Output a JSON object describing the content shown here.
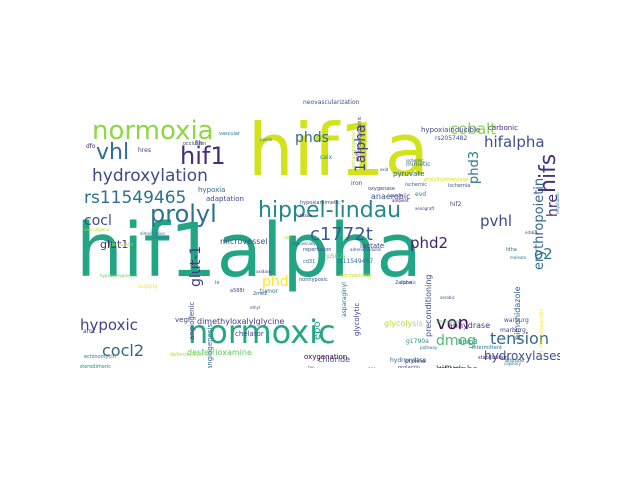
{
  "word_cloud": {
    "words": [
      {
        "text": "hif1alpha",
        "color": "#21a585"
      },
      {
        "text": "hif1a",
        "color": "#d2e21b"
      },
      {
        "text": "normoxic",
        "color": "#26a784"
      },
      {
        "text": "hippel-lindau",
        "color": "#22888e"
      },
      {
        "text": "prolyl",
        "color": "#2c728e"
      },
      {
        "text": "normoxia",
        "color": "#8fd744"
      },
      {
        "text": "hydroxylation",
        "color": "#3e4a89"
      },
      {
        "text": "hif1",
        "color": "#472d7b"
      },
      {
        "text": "vhl",
        "color": "#2d708e"
      },
      {
        "text": "hifs",
        "color": "#46337e"
      },
      {
        "text": "c1772t",
        "color": "#365c8d"
      },
      {
        "text": "rs11549465",
        "color": "#2c728e"
      },
      {
        "text": "tension",
        "color": "#31688e"
      },
      {
        "text": "von",
        "color": "#46085c"
      },
      {
        "text": "cocl2",
        "color": "#30697e"
      },
      {
        "text": "hypoxic",
        "color": "#414487"
      },
      {
        "text": "dmog",
        "color": "#4fba6e"
      },
      {
        "text": "hifalpha",
        "color": "#3b528b"
      },
      {
        "text": "cobalt",
        "color": "#84d44b"
      },
      {
        "text": "phd2",
        "color": "#482173"
      },
      {
        "text": "1alpha",
        "color": "#433e85"
      },
      {
        "text": "phds",
        "color": "#31688e"
      },
      {
        "text": "pvhl",
        "color": "#3e4989"
      },
      {
        "text": "phd3",
        "color": "#2a788e"
      },
      {
        "text": "o2",
        "color": "#2a768e"
      },
      {
        "text": "hre",
        "color": "#482878"
      },
      {
        "text": "glut-1",
        "color": "#443983"
      },
      {
        "text": "phd",
        "color": "#fde725"
      },
      {
        "text": "erythropoietin",
        "color": "#31688e"
      },
      {
        "text": "hydroxylases",
        "color": "#3b528b"
      },
      {
        "text": "cocl",
        "color": "#3e4c8a"
      },
      {
        "text": "glut1",
        "color": "#472c7a"
      },
      {
        "text": "epo",
        "color": "#1f9a8a"
      },
      {
        "text": "hif1alpha",
        "color": "#2d718e"
      },
      {
        "text": "anhydrase",
        "color": "#453882"
      },
      {
        "text": "chloride",
        "color": "#355f8d"
      },
      {
        "text": "desferrioxamine",
        "color": "#5ec962"
      },
      {
        "text": "vegf",
        "color": "#3f4788"
      },
      {
        "text": "dimethyloxalylglycine",
        "color": "#443a83"
      },
      {
        "text": "microvessel",
        "color": "#3b528b"
      },
      {
        "text": "anaerobic",
        "color": "#39558c"
      },
      {
        "text": "hypoxia",
        "color": "#2f6c8e"
      },
      {
        "text": "adaptation",
        "color": "#3f4889"
      },
      {
        "text": "hypoxiainducible",
        "color": "#3e4989"
      },
      {
        "text": "carbonic",
        "color": "#472f7d"
      },
      {
        "text": "pyruvate",
        "color": "#33638d"
      },
      {
        "text": "pimonidazole",
        "color": "#365d8d"
      },
      {
        "text": "preconditioning",
        "color": "#3b518b"
      },
      {
        "text": "glycolysis",
        "color": "#b5de2b"
      },
      {
        "text": "glycolytic",
        "color": "#424086"
      },
      {
        "text": "bnip3",
        "color": "#26818e"
      },
      {
        "text": "angiogenic",
        "color": "#3c4f8a"
      },
      {
        "text": "angiogenesis",
        "color": "#2e6e8e"
      },
      {
        "text": "oxygenation",
        "color": "#440154"
      },
      {
        "text": "lactate",
        "color": "#414487"
      },
      {
        "text": "chelator",
        "color": "#3f4788"
      },
      {
        "text": "hres",
        "color": "#453781"
      },
      {
        "text": "fih",
        "color": "#472a7a"
      },
      {
        "text": "caix",
        "color": "#23898e"
      },
      {
        "text": "mimetic",
        "color": "#2e6f8e"
      },
      {
        "text": "hif2",
        "color": "#414287"
      },
      {
        "text": "evd",
        "color": "#277f8e"
      },
      {
        "text": "iron",
        "color": "#3d4e8a"
      },
      {
        "text": "dfo",
        "color": "#482979"
      },
      {
        "text": "p582s",
        "color": "#6ccd5a"
      },
      {
        "text": "rs11549467",
        "color": "#2d708e"
      },
      {
        "text": "rs2057482",
        "color": "#3b528b"
      },
      {
        "text": "g1790a",
        "color": "#21918c"
      },
      {
        "text": "proline",
        "color": "#482374"
      },
      {
        "text": "hydroxylase",
        "color": "#2f6b8e"
      },
      {
        "text": "neovascularization",
        "color": "#3b528b"
      },
      {
        "text": "vascular",
        "color": "#2a778e"
      },
      {
        "text": "ischemic",
        "color": "#2e6f8e"
      },
      {
        "text": "ischemia",
        "color": "#38588c"
      },
      {
        "text": "prolylhydroxylase",
        "color": "#d8e219"
      },
      {
        "text": "marburg",
        "color": "#424086"
      },
      {
        "text": "warburg",
        "color": "#3a538b"
      },
      {
        "text": "altitude",
        "color": "#2c738e"
      },
      {
        "text": "intermittent",
        "color": "#2c728e"
      },
      {
        "text": "stabilization",
        "color": "#482677"
      },
      {
        "text": "prolactin",
        "color": "#3e4989"
      },
      {
        "text": "pvhl",
        "color": "#481f70"
      },
      {
        "text": "nonhypoxic",
        "color": "#3b528b"
      },
      {
        "text": "asparaginyl",
        "color": "#2c728e"
      },
      {
        "text": "oxygenase",
        "color": "#404588"
      },
      {
        "text": "arnt",
        "color": "#414287"
      },
      {
        "text": "hif2alpha",
        "color": "#440154"
      },
      {
        "text": "2alpha",
        "color": "#3f4788"
      },
      {
        "text": "supply",
        "color": "#fde725"
      },
      {
        "text": "tumor",
        "color": "#2a788e"
      },
      {
        "text": "perfusion",
        "color": "#b5de2b"
      },
      {
        "text": "reperfusion",
        "color": "#3b528b"
      },
      {
        "text": "hypoxiamimetic",
        "color": "#3d4d8a"
      },
      {
        "text": "normoxically",
        "color": "#bddf26"
      },
      {
        "text": "echinomycin",
        "color": "#2a768e"
      },
      {
        "text": "deferoxamine",
        "color": "#b5de2b"
      },
      {
        "text": "adrenomedullin",
        "color": "#3b528b"
      },
      {
        "text": "occlusion",
        "color": "#3f4788"
      },
      {
        "text": "respiration",
        "color": "#25848e"
      },
      {
        "text": "proangiogenic",
        "color": "#3f4788"
      },
      {
        "text": "antiangiogenic",
        "color": "#bddf26"
      },
      {
        "text": "capillary",
        "color": "#2a768e"
      },
      {
        "text": "oxidase",
        "color": "#443a83"
      },
      {
        "text": "2me2",
        "color": "#3b518b"
      },
      {
        "text": "a588t",
        "color": "#3c4f8a"
      },
      {
        "text": "ethyl",
        "color": "#365d8d"
      },
      {
        "text": "cd31",
        "color": "#2f6b8e"
      },
      {
        "text": "hypoxically",
        "color": "#38588c"
      },
      {
        "text": "nbs",
        "color": "#9bd93c"
      },
      {
        "text": "ldha",
        "color": "#2e6f8e"
      },
      {
        "text": "heterodimeric",
        "color": "#238a8d"
      },
      {
        "text": "dimerization",
        "color": "#2c728e"
      },
      {
        "text": "1-methylpiperidin",
        "color": "#fde725"
      },
      {
        "text": "vasculogenic",
        "color": "#b5de2b"
      },
      {
        "text": "erbb2",
        "color": "#414487"
      },
      {
        "text": "maleate",
        "color": "#2a788e"
      },
      {
        "text": "diabetic",
        "color": "#355f8d"
      },
      {
        "text": "ix",
        "color": "#3f4788"
      },
      {
        "text": "cancer",
        "color": "#482677"
      },
      {
        "text": "ambient",
        "color": "#440154"
      },
      {
        "text": "xenograft",
        "color": "#3e4989"
      },
      {
        "text": "tissue",
        "color": "#440154"
      },
      {
        "text": "pathway",
        "color": "#2c728e"
      },
      {
        "text": "crosstalk",
        "color": "#2a788e"
      },
      {
        "text": "hypoxiaresponsive",
        "color": "#5ec962"
      },
      {
        "text": "ischemic",
        "color": "#3b528b"
      },
      {
        "text": "tpo",
        "color": "#31688e"
      },
      {
        "text": "ep300",
        "color": "#482677"
      },
      {
        "text": "apelin",
        "color": "#2c728e"
      },
      {
        "text": "atmosphere",
        "color": "#5ec962"
      },
      {
        "text": "aerobic",
        "color": "#3b528b"
      },
      {
        "text": "oxid",
        "color": "#3b528b"
      }
    ]
  }
}
